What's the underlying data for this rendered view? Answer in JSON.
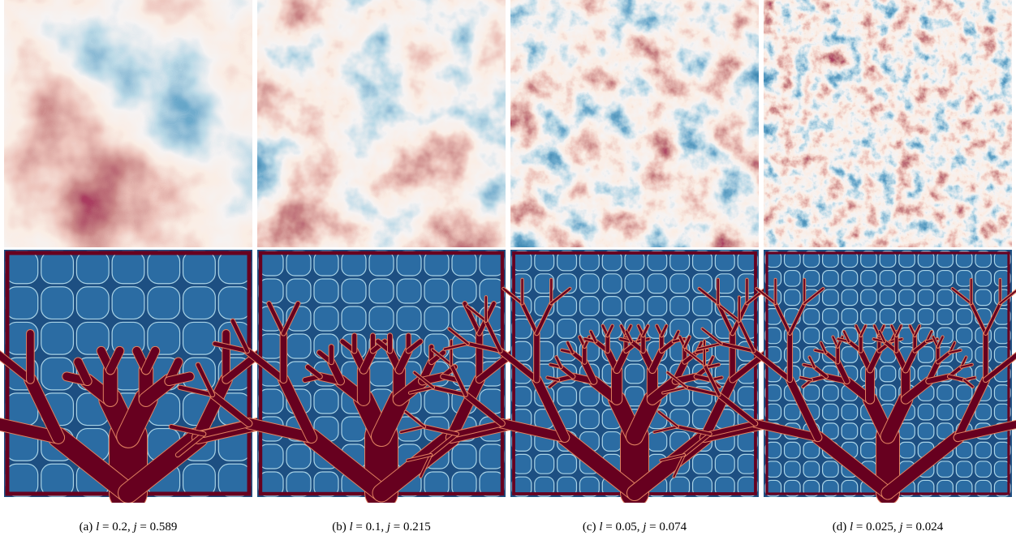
{
  "captions": [
    {
      "tag": "(a)",
      "var1": "l",
      "val1": "= 0.2,",
      "var2": "j",
      "val2": "= 0.589"
    },
    {
      "tag": "(b)",
      "var1": "l",
      "val1": "= 0.1,",
      "var2": "j",
      "val2": "= 0.215"
    },
    {
      "tag": "(c)",
      "var1": "l",
      "val1": "= 0.05,",
      "var2": "j",
      "val2": "= 0.074"
    },
    {
      "tag": "(d)",
      "var1": "l",
      "val1": "= 0.025,",
      "var2": "j",
      "val2": "= 0.024"
    }
  ]
}
